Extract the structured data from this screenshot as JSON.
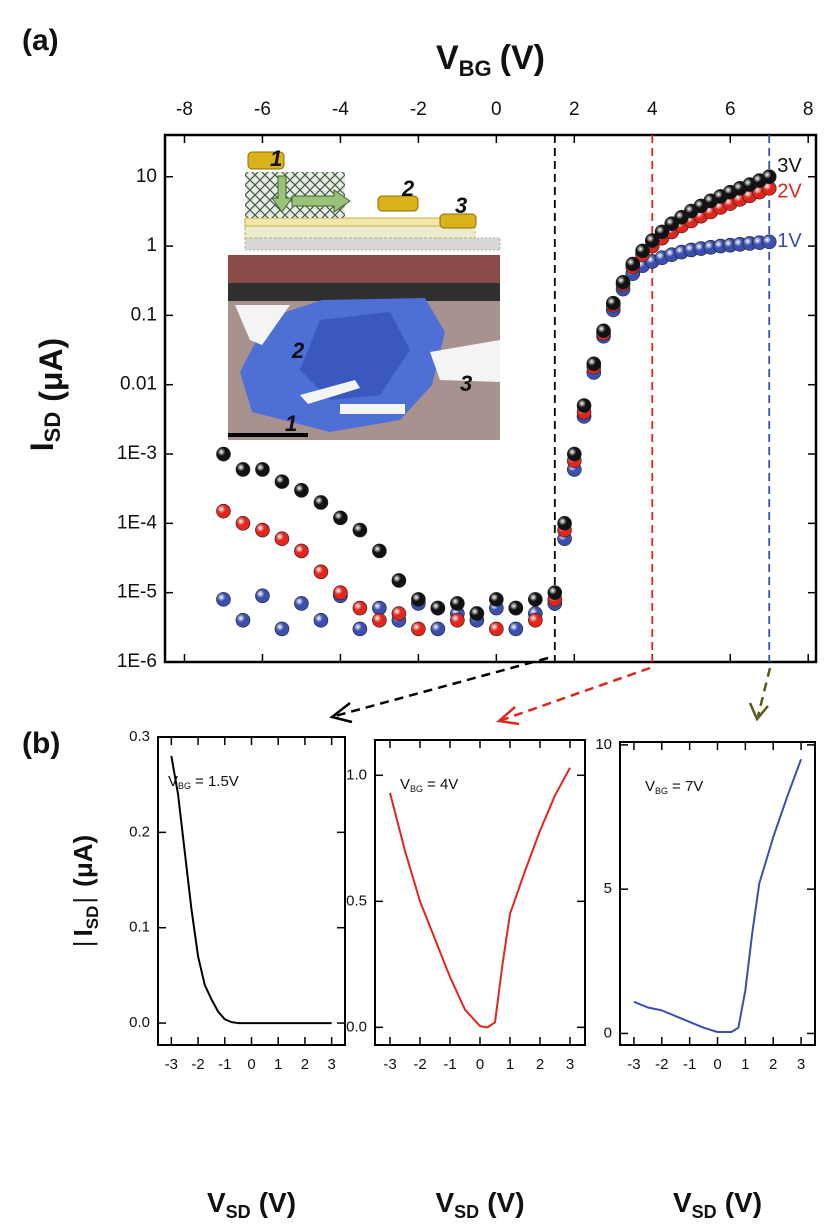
{
  "figure": {
    "panel_labels": [
      "(a)",
      "(b)"
    ],
    "inset": {
      "schematic_labels": [
        "1",
        "2",
        "3"
      ],
      "micrograph_labels": [
        "2",
        "3",
        "1"
      ]
    }
  },
  "chart_data": [
    {
      "type": "scatter",
      "log_y": true,
      "xlabel": {
        "main": "V",
        "sub": "BG",
        "unit": "(V)"
      },
      "ylabel": {
        "main": "I",
        "sub": "SD",
        "unit": "(μA)"
      },
      "xlim": [
        -8.5,
        8.2
      ],
      "xticks": [
        -8,
        -6,
        -4,
        -2,
        0,
        2,
        4,
        6,
        8
      ],
      "ylim": [
        1e-06,
        40
      ],
      "yticks": [
        10,
        1,
        0.1,
        0.01,
        {
          "value": 0.001,
          "label": "1E-3"
        },
        {
          "value": 0.0001,
          "label": "1E-4"
        },
        {
          "value": 1e-05,
          "label": "1E-5"
        },
        {
          "value": 1e-06,
          "label": "1E-6"
        }
      ],
      "markers": [
        {
          "x": 1.5,
          "color": "#000000"
        },
        {
          "x": 4,
          "color": "#e0261d"
        },
        {
          "x": 7,
          "color": "#3a4fb0"
        }
      ],
      "x": [
        -7,
        -6.5,
        -6,
        -5.5,
        -5,
        -4.5,
        -4,
        -3.5,
        -3,
        -2.5,
        -2,
        -1.5,
        -1,
        -0.5,
        0,
        0.5,
        1,
        1.5,
        1.75,
        2,
        2.25,
        2.5,
        2.75,
        3,
        3.25,
        3.5,
        3.75,
        4,
        4.25,
        4.5,
        4.75,
        5,
        5.25,
        5.5,
        5.75,
        6,
        6.25,
        6.5,
        6.75,
        7
      ],
      "series": [
        {
          "name": "1V",
          "color": "#3a4fb0",
          "values": [
            8e-06,
            4e-06,
            9e-06,
            3e-06,
            7e-06,
            4e-06,
            9e-06,
            3e-06,
            6e-06,
            4e-06,
            7e-06,
            3e-06,
            5e-06,
            4e-06,
            6e-06,
            3e-06,
            5e-06,
            7e-06,
            6e-05,
            0.0006,
            0.0035,
            0.015,
            0.05,
            0.12,
            0.24,
            0.4,
            0.52,
            0.6,
            0.68,
            0.75,
            0.82,
            0.88,
            0.92,
            0.96,
            1,
            1.03,
            1.06,
            1.09,
            1.12,
            1.15
          ]
        },
        {
          "name": "2V",
          "color": "#e0261d",
          "values": [
            0.00015,
            0.0001,
            8e-05,
            6e-05,
            4e-05,
            2e-05,
            1e-05,
            6e-06,
            4e-06,
            5e-06,
            3e-06,
            6e-06,
            4e-06,
            5e-06,
            3e-06,
            6e-06,
            4e-06,
            8e-06,
            8e-05,
            0.0008,
            0.004,
            0.018,
            0.055,
            0.14,
            0.28,
            0.5,
            0.75,
            1,
            1.3,
            1.6,
            1.95,
            2.3,
            2.7,
            3.1,
            3.6,
            4.1,
            4.7,
            5.3,
            6,
            6.8
          ]
        },
        {
          "name": "3V",
          "color": "#111111",
          "values": [
            0.001,
            0.0006,
            0.0006,
            0.0004,
            0.0003,
            0.0002,
            0.00012,
            8e-05,
            4e-05,
            1.5e-05,
            8e-06,
            6e-06,
            7e-06,
            5e-06,
            8e-06,
            6e-06,
            8e-06,
            1e-05,
            0.0001,
            0.001,
            0.005,
            0.02,
            0.06,
            0.15,
            0.3,
            0.55,
            0.85,
            1.2,
            1.6,
            2.1,
            2.6,
            3.2,
            3.8,
            4.5,
            5.2,
            6,
            6.8,
            7.7,
            8.8,
            10
          ]
        }
      ]
    },
    {
      "type": "line",
      "xlabel": {
        "main": "V",
        "sub": "SD",
        "unit": "(V)"
      },
      "ylabel": {
        "pre": "|",
        "main": "I",
        "sub": "SD",
        "post": "|",
        "unit": "(μA)"
      },
      "annotation": {
        "main": "V",
        "sub": "BG",
        "rest": "= 1.5V"
      },
      "xlim": [
        -3.5,
        3.5
      ],
      "xticks": [
        -3,
        -2,
        -1,
        0,
        1,
        2,
        3
      ],
      "ylim": [
        -0.023,
        0.3
      ],
      "yticks": [
        {
          "value": 0,
          "label": "0.0"
        },
        0.1,
        0.2,
        0.3
      ],
      "x": [
        -3,
        -2.75,
        -2.5,
        -2.25,
        -2,
        -1.75,
        -1.5,
        -1.25,
        -1,
        -0.75,
        -0.5,
        0,
        0.5,
        1,
        1.5,
        2,
        2.5,
        3
      ],
      "series": [
        {
          "color": "#000000",
          "values": [
            0.28,
            0.24,
            0.18,
            0.12,
            0.07,
            0.04,
            0.025,
            0.012,
            0.004,
            0.001,
            0,
            0,
            0,
            0,
            0,
            0,
            0,
            0
          ]
        }
      ]
    },
    {
      "type": "line",
      "xlabel": {
        "main": "V",
        "sub": "SD",
        "unit": "(V)"
      },
      "annotation": {
        "main": "V",
        "sub": "BG",
        "rest": "= 4V"
      },
      "xlim": [
        -3.5,
        3.5
      ],
      "xticks": [
        -3,
        -2,
        -1,
        0,
        1,
        2,
        3
      ],
      "ylim": [
        -0.07,
        1.14
      ],
      "yticks": [
        {
          "value": 0,
          "label": "0.0"
        },
        0.5,
        {
          "value": 1,
          "label": "1.0"
        }
      ],
      "x": [
        -3,
        -2.5,
        -2,
        -1.5,
        -1,
        -0.5,
        0,
        0.25,
        0.5,
        0.75,
        1,
        1.5,
        2,
        2.5,
        3
      ],
      "series": [
        {
          "color": "#e0261d",
          "values": [
            0.93,
            0.7,
            0.5,
            0.35,
            0.2,
            0.07,
            0.005,
            0,
            0.02,
            0.25,
            0.45,
            0.62,
            0.78,
            0.92,
            1.03
          ]
        }
      ]
    },
    {
      "type": "line",
      "xlabel": {
        "main": "V",
        "sub": "SD",
        "unit": "(V)"
      },
      "annotation": {
        "main": "V",
        "sub": "BG",
        "rest": "= 7V"
      },
      "xlim": [
        -3.5,
        3.5
      ],
      "xticks": [
        -3,
        -2,
        -1,
        0,
        1,
        2,
        3
      ],
      "ylim": [
        -0.4,
        10.1
      ],
      "yticks": [
        0,
        5,
        10
      ],
      "x": [
        -3,
        -2.5,
        -2,
        -1.5,
        -1,
        -0.5,
        0,
        0.5,
        0.75,
        1,
        1.25,
        1.5,
        2,
        2.5,
        3
      ],
      "series": [
        {
          "color": "#3a4fb0",
          "values": [
            1.1,
            0.9,
            0.8,
            0.6,
            0.4,
            0.2,
            0.05,
            0.05,
            0.2,
            1.5,
            3.5,
            5.2,
            6.8,
            8.2,
            9.5
          ]
        }
      ]
    }
  ]
}
